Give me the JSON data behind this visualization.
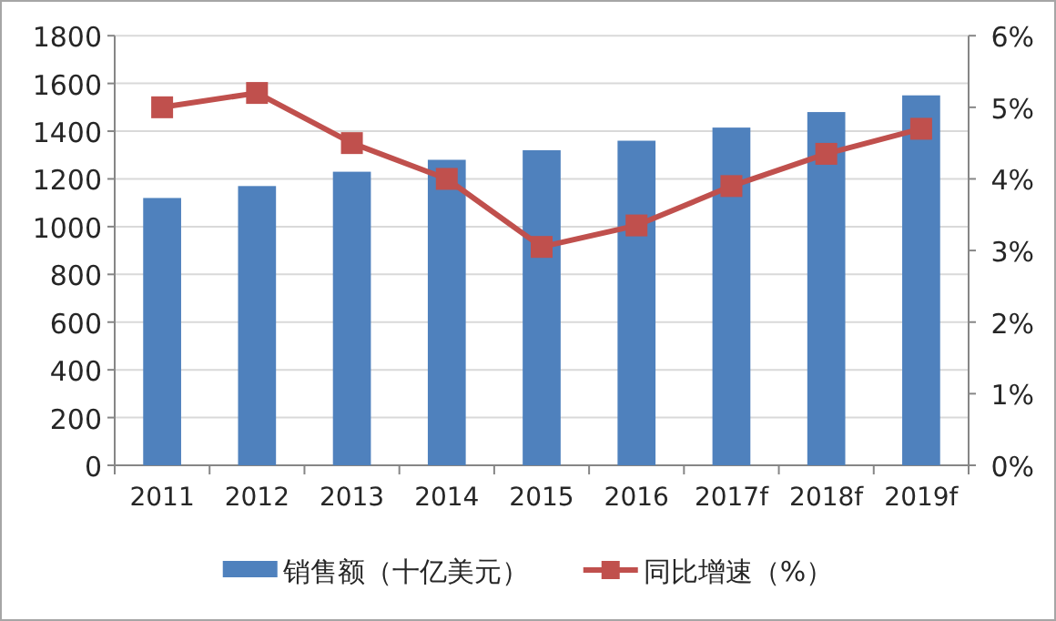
{
  "chart_data": {
    "type": "bar",
    "categories": [
      "2011",
      "2012",
      "2013",
      "2014",
      "2015",
      "2016",
      "2017f",
      "2018f",
      "2019f"
    ],
    "series": [
      {
        "name": "销售额（十亿美元）",
        "color": "#4f81bd",
        "values": [
          1120,
          1170,
          1230,
          1280,
          1320,
          1360,
          1415,
          1480,
          1550
        ]
      },
      {
        "name": "同比增速（%）",
        "type": "line",
        "axis": "y2",
        "color": "#c0504d",
        "marker": "square",
        "values": [
          5.0,
          5.2,
          4.5,
          4.0,
          3.05,
          3.35,
          3.9,
          4.35,
          4.7
        ]
      }
    ],
    "ylim": [
      0,
      1800
    ],
    "yticks": [
      0,
      200,
      400,
      600,
      800,
      1000,
      1200,
      1400,
      1600,
      1800
    ],
    "y2lim": [
      0,
      6
    ],
    "y2ticks": [
      {
        "value": 0,
        "label": "0%"
      },
      {
        "value": 1,
        "label": "1%"
      },
      {
        "value": 2,
        "label": "2%"
      },
      {
        "value": 3,
        "label": "3%"
      },
      {
        "value": 4,
        "label": "4%"
      },
      {
        "value": 5,
        "label": "5%"
      },
      {
        "value": 6,
        "label": "6%"
      }
    ],
    "grid": "y",
    "legend": "bottom"
  }
}
